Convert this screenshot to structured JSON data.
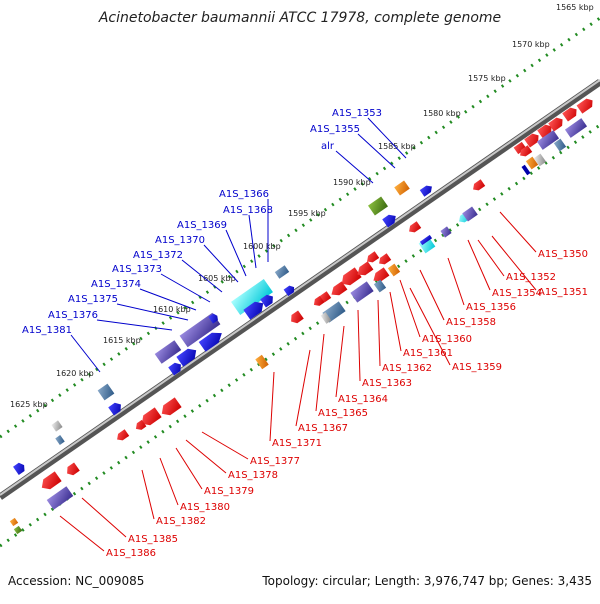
{
  "title": "Acinetobacter baumannii ATCC 17978, complete genome",
  "footer": {
    "accession": "Accession: NC_009085",
    "summary": "Topology: circular; Length: 3,976,747 bp; Genes: 3,435"
  },
  "colors": {
    "forward_label": "#0000cc",
    "reverse_label": "#dd0000",
    "backbone": "#808080",
    "tick_dots": "#228b22"
  },
  "kbp_labels": [
    "1565 kbp",
    "1570 kbp",
    "1575 kbp",
    "1580 kbp",
    "1585 kbp",
    "1590 kbp",
    "1595 kbp",
    "1600 kbp",
    "1605 kbp",
    "1610 kbp",
    "1615 kbp",
    "1620 kbp",
    "1625 kbp"
  ],
  "forward_genes": [
    "A1S_1353",
    "A1S_1355",
    "alr",
    "A1S_1366",
    "A1S_1368",
    "A1S_1369",
    "A1S_1370",
    "A1S_1372",
    "A1S_1373",
    "A1S_1374",
    "A1S_1375",
    "A1S_1376",
    "A1S_1381"
  ],
  "reverse_genes": [
    "A1S_1350",
    "A1S_1352",
    "A1S_1351",
    "A1S_1354",
    "A1S_1356",
    "A1S_1358",
    "A1S_1360",
    "A1S_1361",
    "A1S_1359",
    "A1S_1362",
    "A1S_1363",
    "A1S_1364",
    "A1S_1365",
    "A1S_1367",
    "A1S_1371",
    "A1S_1377",
    "A1S_1378",
    "A1S_1379",
    "A1S_1380",
    "A1S_1382",
    "A1S_1385",
    "A1S_1386"
  ]
}
